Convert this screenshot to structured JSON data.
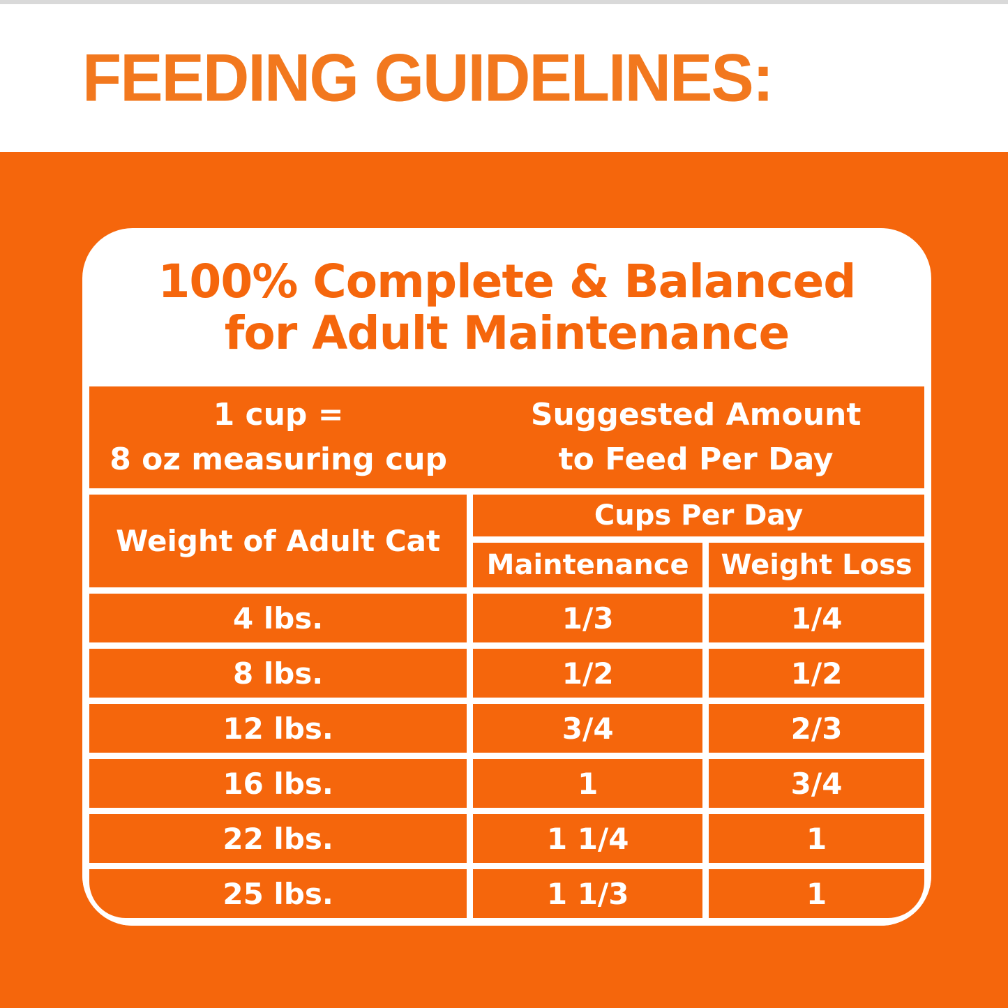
{
  "page": {
    "title": "FEEDING GUIDELINES:"
  },
  "card": {
    "title_line1": "100% Complete & Balanced",
    "title_line2": "for Adult Maintenance",
    "cup_note_line1": "1 cup =",
    "cup_note_line2": "8 oz measuring cup",
    "suggested_line1": "Suggested Amount",
    "suggested_line2": "to Feed Per Day",
    "table": {
      "weight_header": "Weight of Adult Cat",
      "cups_header": "Cups Per Day",
      "col_maintenance": "Maintenance",
      "col_weight_loss": "Weight Loss",
      "rows": [
        {
          "weight": "4 lbs.",
          "maintenance": "1/3",
          "weight_loss": "1/4"
        },
        {
          "weight": "8 lbs.",
          "maintenance": "1/2",
          "weight_loss": "1/2"
        },
        {
          "weight": "12 lbs.",
          "maintenance": "3/4",
          "weight_loss": "2/3"
        },
        {
          "weight": "16 lbs.",
          "maintenance": "1",
          "weight_loss": "3/4"
        },
        {
          "weight": "22 lbs.",
          "maintenance": "1 1/4",
          "weight_loss": "1"
        },
        {
          "weight": "25 lbs.",
          "maintenance": "1 1/3",
          "weight_loss": "1"
        }
      ]
    }
  },
  "colors": {
    "background_orange": "#f5660c",
    "heading_orange": "#f2781e",
    "grid_white": "#ffffff",
    "top_edge_gray": "#d9d9d9"
  }
}
